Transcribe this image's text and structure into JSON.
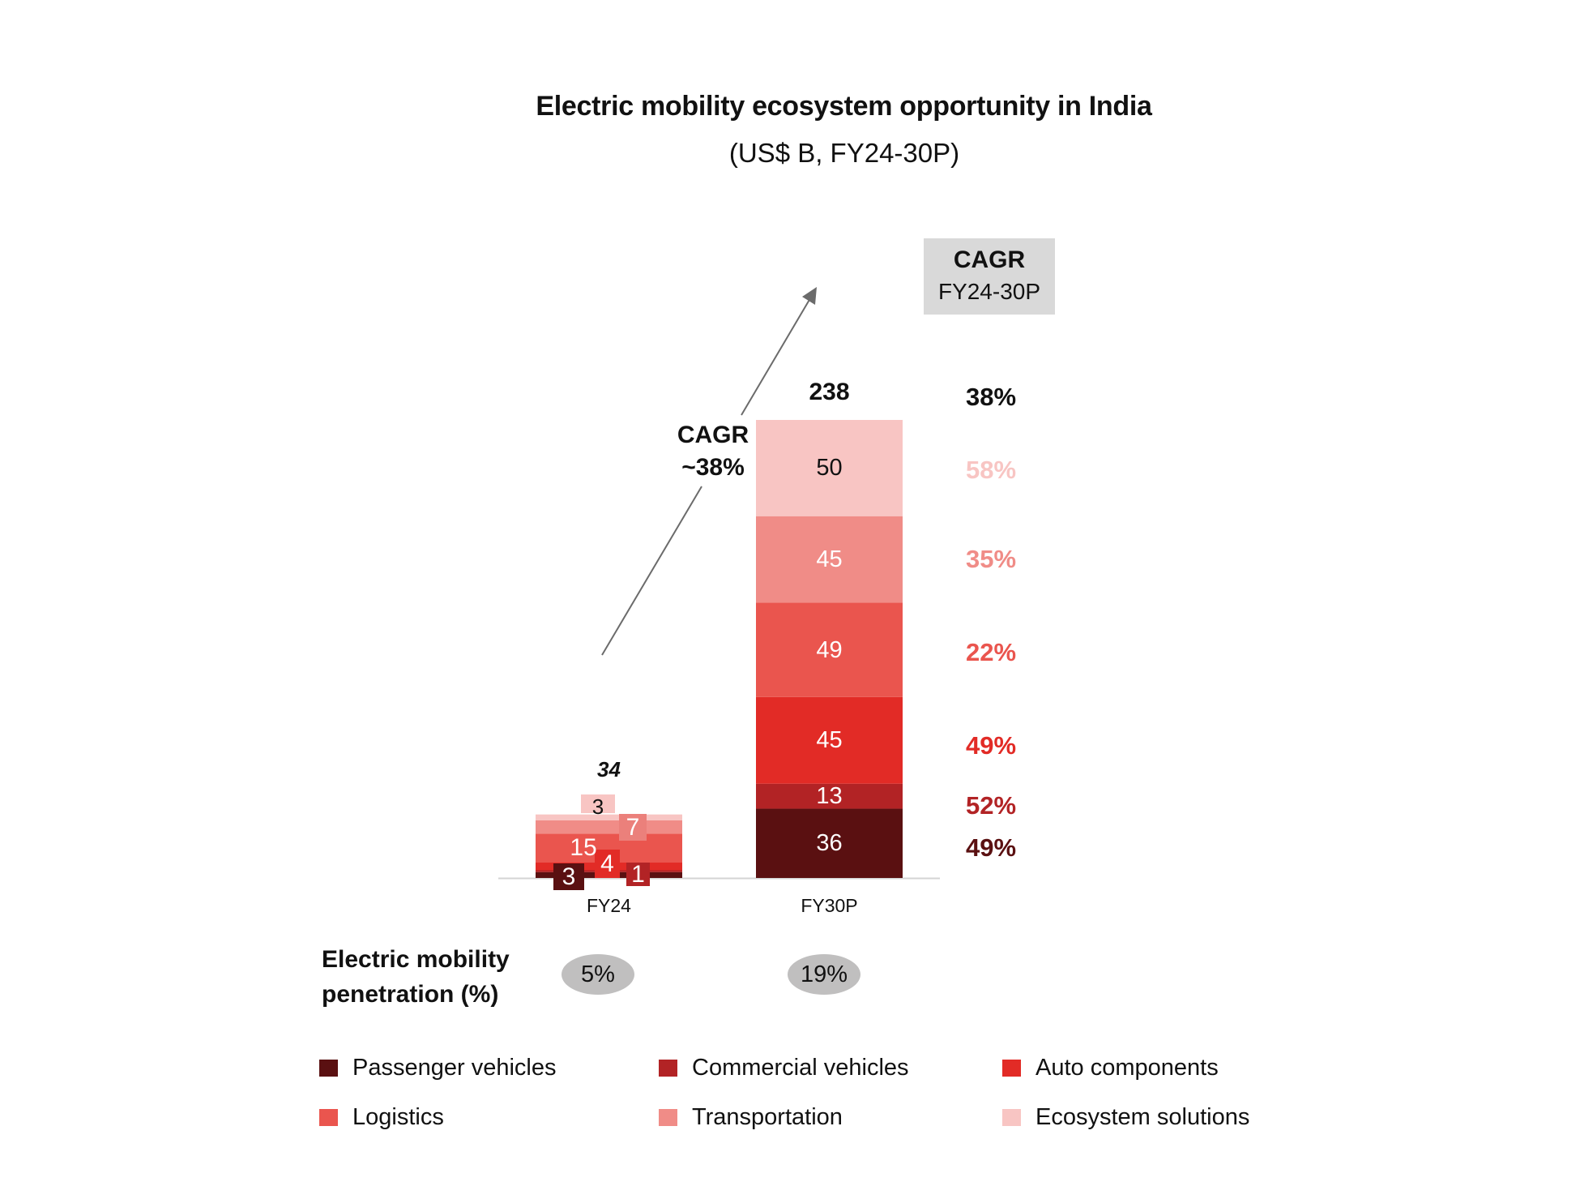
{
  "title": "Electric mobility ecosystem opportunity in India",
  "subtitle": "(US$ B, FY24-30P)",
  "cagr_header": {
    "line1": "CAGR",
    "line2": "FY24-30P"
  },
  "arrow_annotation": {
    "line1": "CAGR",
    "line2": "~38%"
  },
  "penetration": {
    "label_line1": "Electric mobility",
    "label_line2": "penetration (%)",
    "values": [
      "5%",
      "19%"
    ]
  },
  "chart_data": {
    "type": "bar",
    "stacked": true,
    "title": "Electric mobility ecosystem opportunity in India",
    "subtitle": "(US$ B, FY24-30P)",
    "categories": [
      "FY24",
      "FY30P"
    ],
    "totals": [
      "34",
      "238"
    ],
    "total_cagr": "38%",
    "series": [
      {
        "name": "Passenger vehicles",
        "color": "#5A1011",
        "values": [
          3,
          36
        ],
        "cagr": "49%",
        "label_color": "#ffffff"
      },
      {
        "name": "Commercial vehicles",
        "color": "#B22325",
        "values": [
          1,
          13
        ],
        "cagr": "52%",
        "label_color": "#ffffff"
      },
      {
        "name": "Auto components",
        "color": "#E22B26",
        "values": [
          4,
          45
        ],
        "cagr": "49%",
        "label_color": "#ffffff"
      },
      {
        "name": "Logistics",
        "color": "#EA554E",
        "values": [
          15,
          49
        ],
        "cagr": "22%",
        "label_color": "#ffffff"
      },
      {
        "name": "Transportation",
        "color": "#F08C87",
        "values": [
          7,
          45
        ],
        "cagr": "35%",
        "label_color": "#ffffff"
      },
      {
        "name": "Ecosystem solutions",
        "color": "#F8C5C3",
        "values": [
          3,
          50
        ],
        "cagr": "58%",
        "label_color": "#111111"
      }
    ],
    "ylim": [
      0,
      238
    ],
    "legend_position": "bottom",
    "grid": false
  },
  "legend": [
    {
      "label": "Passenger vehicles",
      "color": "#5A1011"
    },
    {
      "label": "Commercial vehicles",
      "color": "#B22325"
    },
    {
      "label": "Auto components",
      "color": "#E22B26"
    },
    {
      "label": "Logistics",
      "color": "#EA554E"
    },
    {
      "label": "Transportation",
      "color": "#F08C87"
    },
    {
      "label": "Ecosystem solutions",
      "color": "#F8C5C3"
    }
  ]
}
